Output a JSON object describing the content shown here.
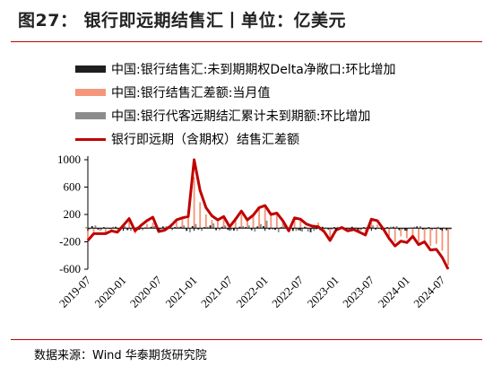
{
  "title": "图27：  银行即远期结售汇丨单位：亿美元",
  "source": "数据来源：Wind  华泰期货研究院",
  "colors": {
    "title_rule": "#c00000",
    "net_open_position": "#1f1f1f",
    "spot_net": "#f4967a",
    "agent_forward_outstanding": "#8c8c8c",
    "combined_line": "#c00000"
  },
  "chart_data": {
    "type": "bar",
    "title": "",
    "xlabel": "",
    "ylabel": "",
    "ylim": [
      -600,
      1000
    ],
    "yticks": [
      -600,
      -200,
      200,
      600,
      1000
    ],
    "ytick_labels": [
      "-600",
      "-200",
      "200",
      "600",
      "1000"
    ],
    "xtick_labels": [
      "2019-07",
      "2020-01",
      "2020-07",
      "2021-01",
      "2021-07",
      "2022-01",
      "2022-07",
      "2023-01",
      "2023-07",
      "2024-01",
      "2024-07"
    ],
    "legend_position": "top-left",
    "x": [
      "2019-07",
      "2019-08",
      "2019-09",
      "2019-10",
      "2019-11",
      "2019-12",
      "2020-01",
      "2020-02",
      "2020-03",
      "2020-04",
      "2020-05",
      "2020-06",
      "2020-07",
      "2020-08",
      "2020-09",
      "2020-10",
      "2020-11",
      "2020-12",
      "2021-01",
      "2021-02",
      "2021-03",
      "2021-04",
      "2021-05",
      "2021-06",
      "2021-07",
      "2021-08",
      "2021-09",
      "2021-10",
      "2021-11",
      "2021-12",
      "2022-01",
      "2022-02",
      "2022-03",
      "2022-04",
      "2022-05",
      "2022-06",
      "2022-07",
      "2022-08",
      "2022-09",
      "2022-10",
      "2022-11",
      "2022-12",
      "2023-01",
      "2023-02",
      "2023-03",
      "2023-04",
      "2023-05",
      "2023-06",
      "2023-07",
      "2023-08",
      "2023-09",
      "2023-10",
      "2023-11",
      "2023-12",
      "2024-01",
      "2024-02",
      "2024-03",
      "2024-04",
      "2024-05",
      "2024-06",
      "2024-07",
      "2024-08"
    ],
    "series": [
      {
        "name": "中国:银行结售汇:未到期期权Delta净敞口:环比增加",
        "kind": "bar",
        "values": [
          10,
          30,
          -20,
          15,
          -10,
          20,
          25,
          -30,
          15,
          -25,
          10,
          20,
          -15,
          25,
          -10,
          15,
          20,
          -40,
          30,
          -20,
          15,
          40,
          -30,
          20,
          -25,
          -35,
          20,
          15,
          -30,
          25,
          30,
          -20,
          -25,
          15,
          20,
          -40,
          -30,
          20,
          -60,
          -15,
          20,
          -20,
          15,
          -10,
          -30,
          20,
          -40,
          15,
          25,
          -20,
          -25,
          15,
          20,
          -30,
          -35,
          10,
          25,
          -20,
          15,
          -10,
          -25,
          -30
        ]
      },
      {
        "name": "中国:银行结售汇差额:当月值",
        "kind": "bar",
        "values": [
          -160,
          -60,
          -40,
          -70,
          -50,
          -30,
          20,
          120,
          -80,
          20,
          60,
          80,
          -60,
          -10,
          60,
          140,
          150,
          250,
          750,
          380,
          200,
          120,
          100,
          180,
          60,
          150,
          200,
          150,
          200,
          320,
          340,
          180,
          220,
          120,
          -20,
          160,
          150,
          20,
          50,
          80,
          -50,
          -150,
          -30,
          20,
          -40,
          -20,
          -60,
          -100,
          80,
          50,
          -10,
          -120,
          -200,
          -120,
          -150,
          -120,
          -200,
          -220,
          -260,
          -230,
          -330,
          -540
        ]
      },
      {
        "name": "中国:银行代客远期结汇累计未到期额:环比增加",
        "kind": "bar",
        "values": [
          -20,
          40,
          -30,
          10,
          20,
          -10,
          30,
          -40,
          20,
          -30,
          10,
          30,
          -20,
          30,
          -30,
          20,
          40,
          -60,
          60,
          -40,
          20,
          70,
          -30,
          40,
          -30,
          -40,
          30,
          40,
          -50,
          60,
          110,
          -20,
          -60,
          60,
          30,
          -40,
          -50,
          -50,
          -40,
          -30,
          10,
          -20,
          20,
          -20,
          -20,
          10,
          -30,
          20,
          40,
          -10,
          -30,
          20,
          30,
          -20,
          -10,
          20,
          30,
          -20,
          -30,
          20,
          10,
          -20
        ]
      },
      {
        "name": "银行即远期（含期权）结售汇差额",
        "kind": "line",
        "values": [
          -180,
          -80,
          -80,
          -80,
          -40,
          -60,
          40,
          140,
          -40,
          40,
          110,
          160,
          -50,
          -30,
          30,
          120,
          150,
          170,
          1000,
          550,
          300,
          180,
          120,
          170,
          20,
          130,
          250,
          120,
          190,
          300,
          330,
          200,
          220,
          110,
          -40,
          150,
          130,
          60,
          30,
          20,
          -50,
          -180,
          -30,
          10,
          -40,
          -20,
          -60,
          -100,
          130,
          110,
          -10,
          -150,
          -260,
          -190,
          -210,
          -120,
          -240,
          -200,
          -320,
          -310,
          -430,
          -600
        ]
      }
    ]
  }
}
